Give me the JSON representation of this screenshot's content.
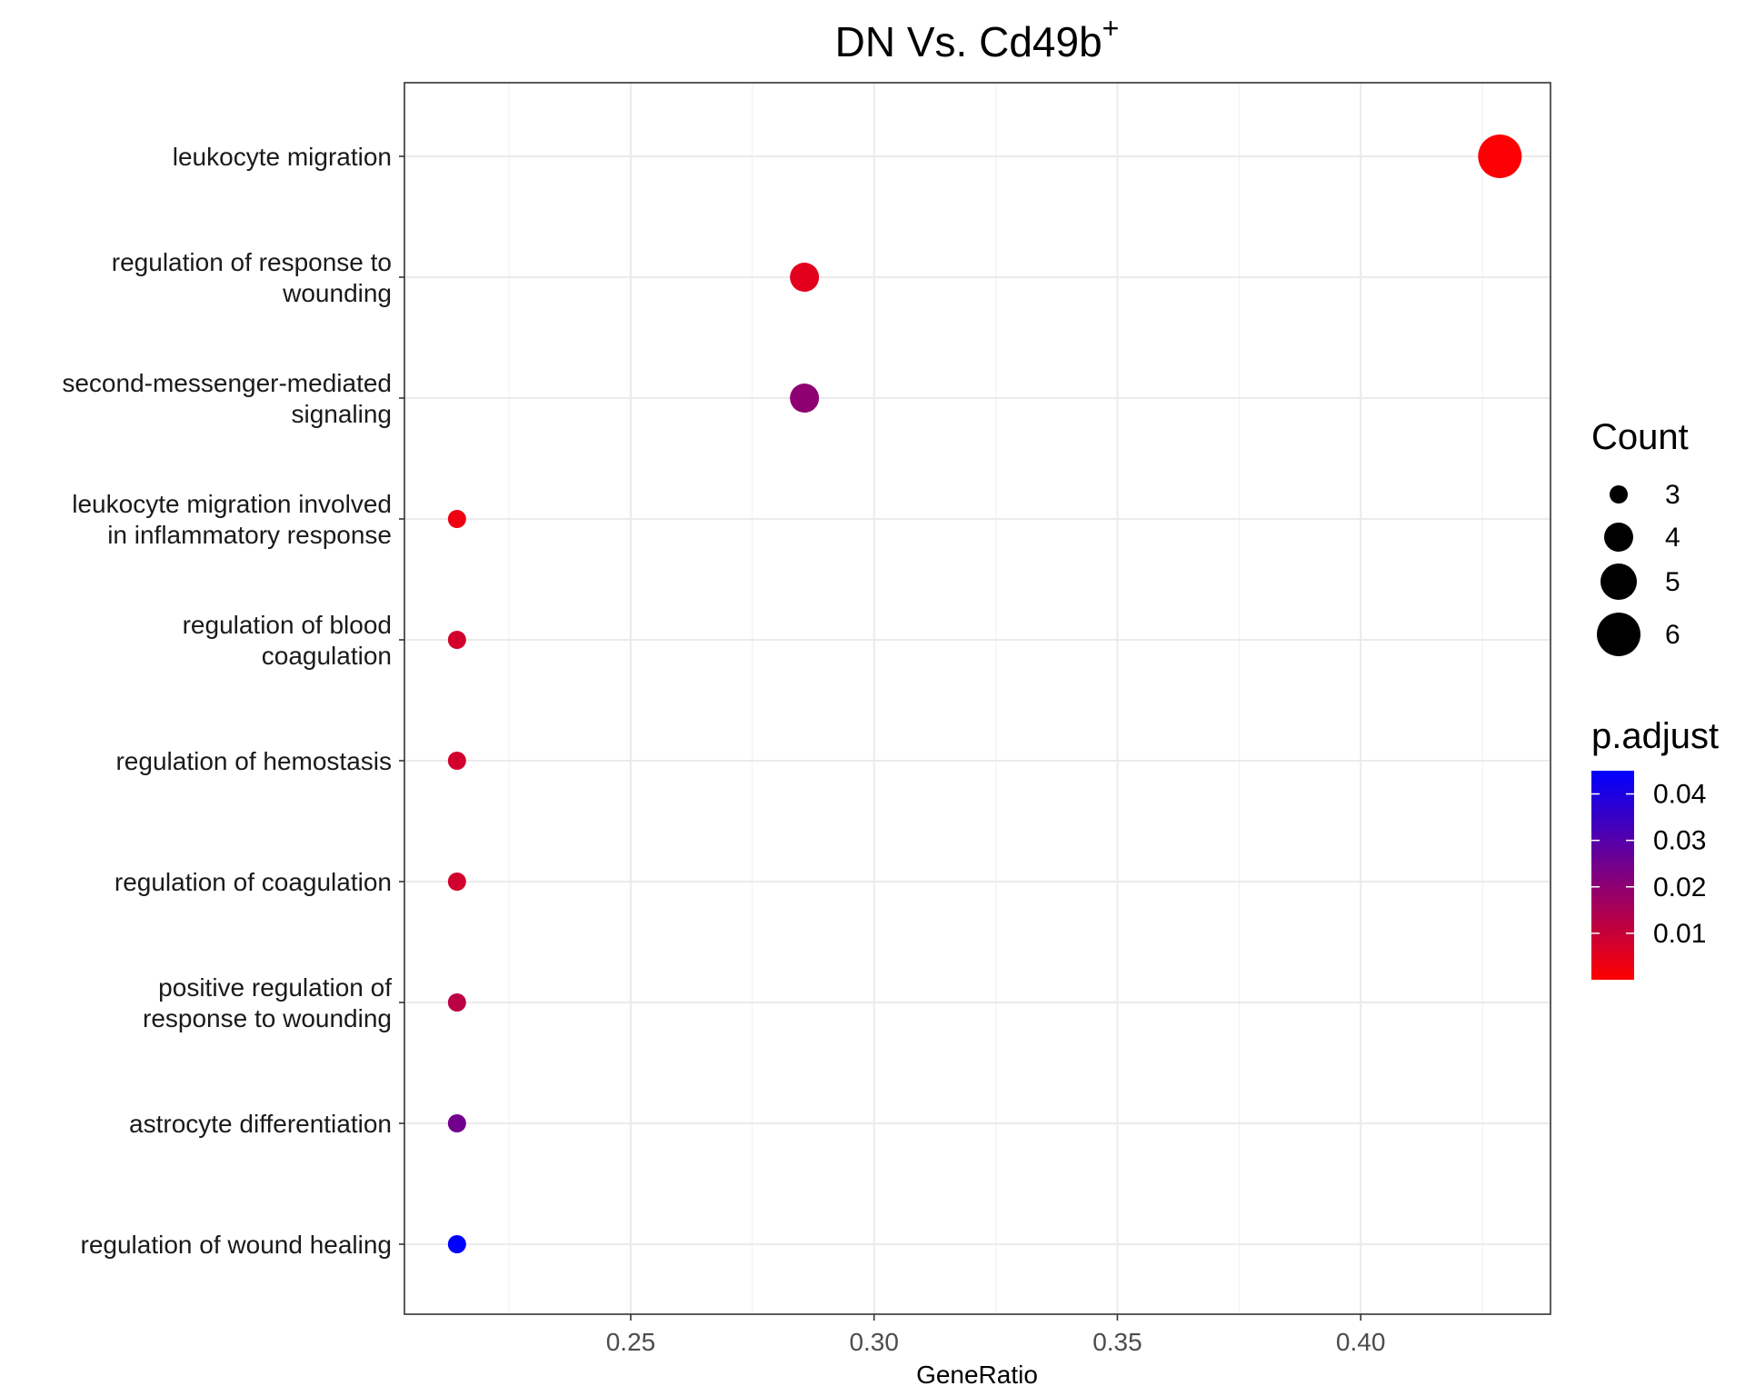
{
  "chart_data": {
    "type": "scatter",
    "title": "DN Vs. Cd49b",
    "title_superscript": "+",
    "xlabel": "GeneRatio",
    "ylabel": "",
    "xlim": [
      0.2035,
      0.439
    ],
    "x_ticks": [
      0.25,
      0.3,
      0.35,
      0.4
    ],
    "x_tick_labels": [
      "0.25",
      "0.30",
      "0.35",
      "0.40"
    ],
    "grid": true,
    "legend_position": "right",
    "points": [
      {
        "term": [
          "leukocyte migration"
        ],
        "gene_ratio": 0.4286,
        "count": 6,
        "p_adjust": 0.0006
      },
      {
        "term": [
          "regulation of response to",
          "wounding"
        ],
        "gene_ratio": 0.2857,
        "count": 4,
        "p_adjust": 0.005
      },
      {
        "term": [
          "second-messenger-mediated",
          "signaling"
        ],
        "gene_ratio": 0.2857,
        "count": 4,
        "p_adjust": 0.02
      },
      {
        "term": [
          "leukocyte migration involved",
          "in inflammatory response"
        ],
        "gene_ratio": 0.2143,
        "count": 3,
        "p_adjust": 0.003
      },
      {
        "term": [
          "regulation of blood",
          "coagulation"
        ],
        "gene_ratio": 0.2143,
        "count": 3,
        "p_adjust": 0.008
      },
      {
        "term": [
          "regulation of hemostasis"
        ],
        "gene_ratio": 0.2143,
        "count": 3,
        "p_adjust": 0.008
      },
      {
        "term": [
          "regulation of coagulation"
        ],
        "gene_ratio": 0.2143,
        "count": 3,
        "p_adjust": 0.008
      },
      {
        "term": [
          "positive regulation of",
          "response to wounding"
        ],
        "gene_ratio": 0.2143,
        "count": 3,
        "p_adjust": 0.012
      },
      {
        "term": [
          "astrocyte differentiation"
        ],
        "gene_ratio": 0.2143,
        "count": 3,
        "p_adjust": 0.025
      },
      {
        "term": [
          "regulation of wound healing"
        ],
        "gene_ratio": 0.2143,
        "count": 3,
        "p_adjust": 0.045
      }
    ],
    "size_legend": {
      "title": "Count",
      "values": [
        3,
        4,
        5,
        6
      ],
      "labels": [
        "3",
        "4",
        "5",
        "6"
      ]
    },
    "color_legend": {
      "title": "p.adjust",
      "range": [
        0.0,
        0.045
      ],
      "low_color": "#ff0000",
      "high_color": "#0000ff",
      "ticks": [
        0.01,
        0.02,
        0.03,
        0.04
      ],
      "tick_labels": [
        "0.01",
        "0.02",
        "0.03",
        "0.04"
      ]
    }
  }
}
